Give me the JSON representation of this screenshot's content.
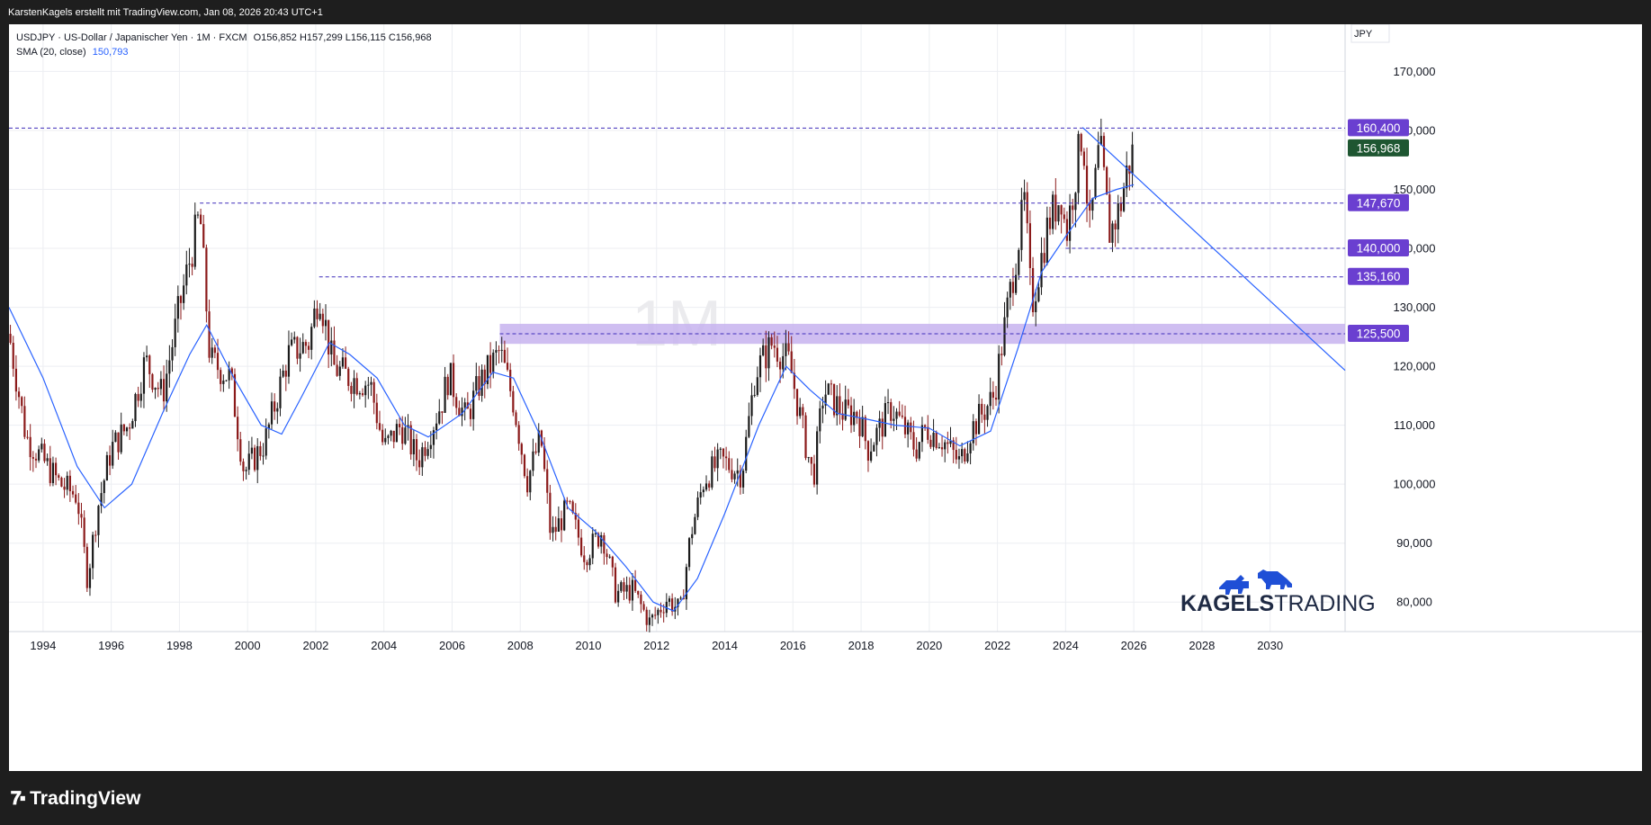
{
  "header": {
    "attribution": "KarstenKagels erstellt mit TradingView.com, Jan 08, 2026 20:43 UTC+1"
  },
  "legend": {
    "symbol_line": "USDJPY · US-Dollar / Japanischer Yen · 1M · FXCM",
    "ohlc": "O156,852  H157,299  L156,115  C156,968",
    "sma_label": "SMA (20, close)",
    "sma_value": "150,793"
  },
  "watermark": "1M",
  "currency_label": "JPY",
  "branding": {
    "logo_text_bold": "KAGELS",
    "logo_text_light": "TRADING",
    "platform": "TradingView"
  },
  "colors": {
    "up": "#1b1b1b",
    "down": "#8b1a1a",
    "sma": "#2962ff",
    "level_line": "#3f2dba",
    "level_badge": "#6a3fd0",
    "zone_fill": "#c7b3ee",
    "price_badge": "#1e5631",
    "logo_blue": "#1f4fd6"
  },
  "chart_data": {
    "type": "candlestick",
    "timeframe": "1M",
    "y_axis": {
      "min": 75000,
      "max": 178000,
      "ticks": [
        80000,
        90000,
        100000,
        110000,
        120000,
        130000,
        140000,
        150000,
        160000,
        170000
      ],
      "tick_labels": [
        "80,000",
        "90,000",
        "100,000",
        "110,000",
        "120,000",
        "130,000",
        "140,000",
        "150,000",
        "160,000",
        "170,000"
      ]
    },
    "x_axis": {
      "min": 1993.0,
      "max": 2032.2,
      "ticks": [
        1994,
        1996,
        1998,
        2000,
        2002,
        2004,
        2006,
        2008,
        2010,
        2012,
        2014,
        2016,
        2018,
        2020,
        2022,
        2024,
        2026,
        2028,
        2030
      ],
      "tick_labels": [
        "1994",
        "1996",
        "1998",
        "2000",
        "2002",
        "2004",
        "2006",
        "2008",
        "2010",
        "2012",
        "2014",
        "2016",
        "2018",
        "2020",
        "2022",
        "2024",
        "2026",
        "2028",
        "2030"
      ]
    },
    "price_path": [
      [
        1993.0,
        125500
      ],
      [
        1993.5,
        108000
      ],
      [
        1994.0,
        104000
      ],
      [
        1994.5,
        100000
      ],
      [
        1995.0,
        98000
      ],
      [
        1995.3,
        84000
      ],
      [
        1995.6,
        96000
      ],
      [
        1996.0,
        106000
      ],
      [
        1996.5,
        110000
      ],
      [
        1997.0,
        121000
      ],
      [
        1997.5,
        115000
      ],
      [
        1998.0,
        130000
      ],
      [
        1998.6,
        146000
      ],
      [
        1998.9,
        121000
      ],
      [
        1999.5,
        118000
      ],
      [
        1999.9,
        102000
      ],
      [
        2000.5,
        107000
      ],
      [
        2001.2,
        122000
      ],
      [
        2001.8,
        124000
      ],
      [
        2002.1,
        133000
      ],
      [
        2002.5,
        120000
      ],
      [
        2003.0,
        118000
      ],
      [
        2003.6,
        117000
      ],
      [
        2004.0,
        106000
      ],
      [
        2004.5,
        110000
      ],
      [
        2005.0,
        104000
      ],
      [
        2005.7,
        114000
      ],
      [
        2005.9,
        118500
      ],
      [
        2006.4,
        111000
      ],
      [
        2006.8,
        117000
      ],
      [
        2007.4,
        122500
      ],
      [
        2007.8,
        114000
      ],
      [
        2008.2,
        100500
      ],
      [
        2008.6,
        108000
      ],
      [
        2008.9,
        91000
      ],
      [
        2009.4,
        96000
      ],
      [
        2009.9,
        88000
      ],
      [
        2010.4,
        92000
      ],
      [
        2010.8,
        81500
      ],
      [
        2011.3,
        82000
      ],
      [
        2011.8,
        76500
      ],
      [
        2012.3,
        80500
      ],
      [
        2012.7,
        78500
      ],
      [
        2013.0,
        91500
      ],
      [
        2013.4,
        101000
      ],
      [
        2013.9,
        104000
      ],
      [
        2014.5,
        101800
      ],
      [
        2014.9,
        119000
      ],
      [
        2015.4,
        124000
      ],
      [
        2015.9,
        120500
      ],
      [
        2016.4,
        106000
      ],
      [
        2016.6,
        101000
      ],
      [
        2016.9,
        116000
      ],
      [
        2017.5,
        112000
      ],
      [
        2017.9,
        112000
      ],
      [
        2018.2,
        106000
      ],
      [
        2018.9,
        113000
      ],
      [
        2019.6,
        106000
      ],
      [
        2019.9,
        109500
      ],
      [
        2020.4,
        107500
      ],
      [
        2020.9,
        103500
      ],
      [
        2021.2,
        109000
      ],
      [
        2021.9,
        115000
      ],
      [
        2022.3,
        130000
      ],
      [
        2022.8,
        148000
      ],
      [
        2023.0,
        130000
      ],
      [
        2023.5,
        144500
      ],
      [
        2023.9,
        149500
      ],
      [
        2024.0,
        141500
      ],
      [
        2024.5,
        160500
      ],
      [
        2024.7,
        142500
      ],
      [
        2025.0,
        157500
      ],
      [
        2025.3,
        142500
      ],
      [
        2025.6,
        147000
      ],
      [
        2025.8,
        153000
      ],
      [
        2026.0,
        156968
      ]
    ],
    "sma_20": {
      "label": "SMA (20, close)",
      "path": [
        [
          1993.0,
          130000
        ],
        [
          1994.0,
          118000
        ],
        [
          1995.0,
          103000
        ],
        [
          1995.8,
          96000
        ],
        [
          1996.6,
          100000
        ],
        [
          1997.5,
          112000
        ],
        [
          1998.3,
          122000
        ],
        [
          1998.8,
          127000
        ],
        [
          1999.6,
          118000
        ],
        [
          2000.4,
          110000
        ],
        [
          2001.0,
          108500
        ],
        [
          2001.6,
          115000
        ],
        [
          2002.4,
          124000
        ],
        [
          2003.0,
          122000
        ],
        [
          2003.8,
          118000
        ],
        [
          2004.6,
          110000
        ],
        [
          2005.3,
          108000
        ],
        [
          2006.3,
          112000
        ],
        [
          2007.2,
          119000
        ],
        [
          2007.8,
          118000
        ],
        [
          2008.6,
          108000
        ],
        [
          2009.4,
          96000
        ],
        [
          2010.2,
          92000
        ],
        [
          2011.1,
          86000
        ],
        [
          2011.9,
          80000
        ],
        [
          2012.5,
          78500
        ],
        [
          2013.2,
          84000
        ],
        [
          2014.0,
          95000
        ],
        [
          2015.0,
          110000
        ],
        [
          2015.8,
          120000
        ],
        [
          2016.5,
          116000
        ],
        [
          2017.3,
          112000
        ],
        [
          2018.2,
          111000
        ],
        [
          2019.0,
          110000
        ],
        [
          2020.0,
          109500
        ],
        [
          2020.9,
          106500
        ],
        [
          2021.8,
          109000
        ],
        [
          2022.6,
          123000
        ],
        [
          2023.3,
          136000
        ],
        [
          2024.0,
          142000
        ],
        [
          2024.8,
          148500
        ],
        [
          2025.5,
          150000
        ],
        [
          2026.0,
          150793
        ]
      ]
    },
    "horizontal_levels": [
      {
        "price": 160400,
        "label": "160,400",
        "from": 1993.0
      },
      {
        "price": 147670,
        "label": "147,670",
        "from": 1998.6
      },
      {
        "price": 140000,
        "label": "140,000",
        "from": 2024.0
      },
      {
        "price": 135160,
        "label": "135,160",
        "from": 2002.1
      },
      {
        "price": 125500,
        "label": "125,500",
        "from": 2007.4
      }
    ],
    "zone": {
      "low": 123800,
      "high": 127200,
      "from": 2007.4
    },
    "trendline": {
      "from": [
        2024.5,
        160500
      ],
      "to": [
        2032.2,
        119300
      ]
    },
    "last_price": {
      "price": 156968,
      "label": "156,968"
    }
  }
}
